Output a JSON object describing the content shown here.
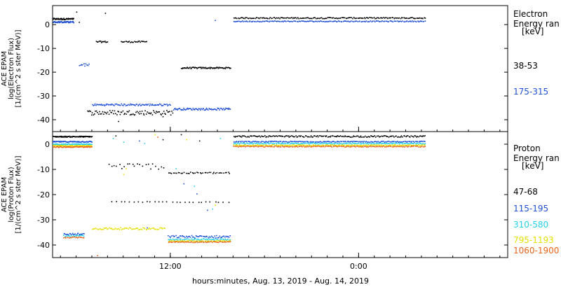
{
  "footer": {
    "xlabel": "hours:minutes, Aug. 13, 2019 - Aug. 14, 2019"
  },
  "colors": {
    "black": "#000000",
    "blue": "#1f4fd6",
    "cyan": "#22d0e8",
    "yellow": "#e5e000",
    "orange": "#e8641a"
  },
  "chart_data": [
    {
      "type": "scatter",
      "panel": "electron",
      "ylabel": [
        "ACE EPAM",
        "log(Electron Flux)",
        "[1/(cm^2 s ster MeV)]"
      ],
      "legend_title": [
        "Electron",
        "Energy ran"
      ],
      "legend_unit": "[keV]",
      "ylim": [
        -45,
        8
      ],
      "yticks": [
        0,
        -10,
        -20,
        -30,
        -40
      ],
      "xlim": [
        "2019-08-13 04:30",
        "2019-08-14 09:30"
      ],
      "xticks": [
        {
          "label": "12:00",
          "x": "2019-08-13 12:00"
        },
        {
          "label": "0:00",
          "x": "2019-08-14 00:00"
        }
      ],
      "grid": false,
      "legend_position": "right",
      "series": [
        {
          "name": "38-53",
          "color": "#000000",
          "segments": [
            {
              "x": [
                "2019-08-13 04:30",
                "2019-08-13 05:50"
              ],
              "y": 2.6,
              "jitter": 0.3,
              "n": 55
            },
            {
              "x": [
                "2019-08-13 07:15",
                "2019-08-13 08:00"
              ],
              "y": -7.0,
              "jitter": 0.3,
              "n": 14
            },
            {
              "x": [
                "2019-08-13 08:50",
                "2019-08-13 10:30"
              ],
              "y": -7.0,
              "jitter": 0.3,
              "n": 26
            },
            {
              "x": [
                "2019-08-13 12:40",
                "2019-08-13 15:50"
              ],
              "y": -18.0,
              "jitter": 0.3,
              "n": 70
            },
            {
              "x": [
                "2019-08-13 16:00",
                "2019-08-14 04:15"
              ],
              "y": 3.0,
              "jitter": 0.25,
              "n": 180
            },
            {
              "x": [
                "2019-08-13 06:40",
                "2019-08-13 12:10"
              ],
              "y": -36.8,
              "jitter": 1.0,
              "n": 85
            }
          ],
          "points": [
            [
              "2019-08-13 06:00",
              5.5
            ],
            [
              "2019-08-13 07:50",
              5.0
            ],
            [
              "2019-08-13 06:10",
              1.2
            ],
            [
              "2019-08-13 08:40",
              -40.5
            ],
            [
              "2019-08-13 11:30",
              -38.5
            ]
          ]
        },
        {
          "name": "175-315",
          "color": "#1f4fd6",
          "segments": [
            {
              "x": [
                "2019-08-13 04:30",
                "2019-08-13 05:50"
              ],
              "y": 1.3,
              "jitter": 0.3,
              "n": 55
            },
            {
              "x": [
                "2019-08-13 06:10",
                "2019-08-13 06:50"
              ],
              "y": -16.8,
              "jitter": 0.8,
              "n": 10
            },
            {
              "x": [
                "2019-08-13 07:00",
                "2019-08-13 12:00"
              ],
              "y": -33.5,
              "jitter": 0.4,
              "n": 90
            },
            {
              "x": [
                "2019-08-13 12:10",
                "2019-08-13 15:50"
              ],
              "y": -35.3,
              "jitter": 0.4,
              "n": 75
            },
            {
              "x": [
                "2019-08-13 16:00",
                "2019-08-14 04:15"
              ],
              "y": 1.6,
              "jitter": 0.2,
              "n": 180
            }
          ],
          "points": [
            [
              "2019-08-13 14:50",
              2.0
            ]
          ]
        }
      ]
    },
    {
      "type": "scatter",
      "panel": "proton",
      "ylabel": [
        "ACE EPAM",
        "log(Proton Flux)",
        "[1/(cm^2 s ster MeV)]"
      ],
      "legend_title": [
        "Proton",
        "Energy ran"
      ],
      "legend_unit": "[keV]",
      "ylim": [
        -45,
        5
      ],
      "yticks": [
        0,
        -10,
        -20,
        -30,
        -40
      ],
      "xlim": [
        "2019-08-13 04:30",
        "2019-08-14 09:30"
      ],
      "xticks": [
        {
          "label": "12:00",
          "x": "2019-08-13 12:00"
        },
        {
          "label": "0:00",
          "x": "2019-08-14 00:00"
        }
      ],
      "grid": false,
      "legend_position": "right",
      "series": [
        {
          "name": "47-68",
          "color": "#000000",
          "segments": [
            {
              "x": [
                "2019-08-13 04:30",
                "2019-08-13 07:00"
              ],
              "y": 3.2,
              "jitter": 0.2,
              "n": 80
            },
            {
              "x": [
                "2019-08-13 08:00",
                "2019-08-13 11:40"
              ],
              "y": -8.5,
              "jitter": 1.2,
              "n": 22
            },
            {
              "x": [
                "2019-08-13 11:50",
                "2019-08-13 15:50"
              ],
              "y": -11.2,
              "jitter": 0.3,
              "n": 40
            },
            {
              "x": [
                "2019-08-13 08:10",
                "2019-08-13 15:50"
              ],
              "y": -22.7,
              "jitter": 0.2,
              "n": 28
            },
            {
              "x": [
                "2019-08-13 16:00",
                "2019-08-14 04:15"
              ],
              "y": 3.3,
              "jitter": 0.3,
              "n": 180
            }
          ],
          "points": [
            [
              "2019-08-13 08:30",
              3.5
            ],
            [
              "2019-08-13 11:30",
              2.0
            ],
            [
              "2019-08-13 12:40",
              4.0
            ],
            [
              "2019-08-13 13:50",
              1.5
            ]
          ]
        },
        {
          "name": "115-195",
          "color": "#1f4fd6",
          "segments": [
            {
              "x": [
                "2019-08-13 04:30",
                "2019-08-13 07:00"
              ],
              "y": 1.2,
              "jitter": 0.2,
              "n": 70
            },
            {
              "x": [
                "2019-08-13 05:10",
                "2019-08-13 06:30"
              ],
              "y": -35.5,
              "jitter": 0.4,
              "n": 22
            },
            {
              "x": [
                "2019-08-13 11:50",
                "2019-08-13 15:50"
              ],
              "y": -36.5,
              "jitter": 0.5,
              "n": 60
            },
            {
              "x": [
                "2019-08-13 16:00",
                "2019-08-14 04:15"
              ],
              "y": 1.2,
              "jitter": 0.2,
              "n": 180
            }
          ],
          "points": [
            [
              "2019-08-13 12:50",
              -15.5
            ],
            [
              "2019-08-13 13:40",
              -19.5
            ],
            [
              "2019-08-13 14:20",
              -26.0
            ],
            [
              "2019-08-13 10:30",
              -33.0
            ],
            [
              "2019-08-13 10:00",
              1.5
            ]
          ]
        },
        {
          "name": "310-580",
          "color": "#22d0e8",
          "segments": [
            {
              "x": [
                "2019-08-13 04:30",
                "2019-08-13 07:00"
              ],
              "y": 0.2,
              "jitter": 0.2,
              "n": 70
            },
            {
              "x": [
                "2019-08-13 05:10",
                "2019-08-13 06:30"
              ],
              "y": -36.2,
              "jitter": 0.3,
              "n": 20
            },
            {
              "x": [
                "2019-08-13 11:50",
                "2019-08-13 15:50"
              ],
              "y": -37.6,
              "jitter": 0.3,
              "n": 60
            },
            {
              "x": [
                "2019-08-13 16:00",
                "2019-08-14 04:15"
              ],
              "y": 0.5,
              "jitter": 0.2,
              "n": 180
            }
          ],
          "points": [
            [
              "2019-08-13 08:20",
              2.5
            ],
            [
              "2019-08-13 09:00",
              1.0
            ],
            [
              "2019-08-13 10:20",
              0.5
            ],
            [
              "2019-08-13 12:20",
              -9.5
            ],
            [
              "2019-08-13 13:30",
              -16.5
            ],
            [
              "2019-08-13 14:40",
              -25.5
            ],
            [
              "2019-08-13 15:10",
              2.5
            ]
          ]
        },
        {
          "name": "795-1193",
          "color": "#e5e000",
          "segments": [
            {
              "x": [
                "2019-08-13 04:30",
                "2019-08-13 07:00"
              ],
              "y": -0.4,
              "jitter": 0.2,
              "n": 60
            },
            {
              "x": [
                "2019-08-13 07:00",
                "2019-08-13 11:40"
              ],
              "y": -33.3,
              "jitter": 0.4,
              "n": 70
            },
            {
              "x": [
                "2019-08-13 11:50",
                "2019-08-13 15:50"
              ],
              "y": -38.2,
              "jitter": 0.2,
              "n": 50
            },
            {
              "x": [
                "2019-08-13 16:00",
                "2019-08-14 04:15"
              ],
              "y": -0.2,
              "jitter": 0.2,
              "n": 180
            }
          ],
          "points": [
            [
              "2019-08-13 09:10",
              -9.5
            ],
            [
              "2019-08-13 09:00",
              -11.8
            ],
            [
              "2019-08-13 11:00",
              4.0
            ],
            [
              "2019-08-13 14:50",
              -24.0
            ],
            [
              "2019-08-13 13:00",
              2.0
            ]
          ]
        },
        {
          "name": "1060-1900",
          "color": "#e8641a",
          "segments": [
            {
              "x": [
                "2019-08-13 04:30",
                "2019-08-13 07:00"
              ],
              "y": -0.9,
              "jitter": 0.2,
              "n": 60
            },
            {
              "x": [
                "2019-08-13 05:10",
                "2019-08-13 06:30"
              ],
              "y": -36.8,
              "jitter": 0.2,
              "n": 20
            },
            {
              "x": [
                "2019-08-13 11:50",
                "2019-08-13 15:50"
              ],
              "y": -38.6,
              "jitter": 0.2,
              "n": 60
            },
            {
              "x": [
                "2019-08-13 16:00",
                "2019-08-14 04:15"
              ],
              "y": -0.7,
              "jitter": 0.2,
              "n": 180
            }
          ],
          "points": [
            [
              "2019-08-13 07:20",
              -44.0
            ],
            [
              "2019-08-13 11:10",
              3.0
            ]
          ]
        }
      ]
    }
  ]
}
